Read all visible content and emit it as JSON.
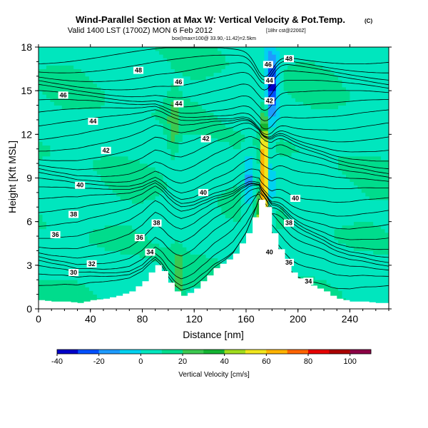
{
  "chart_data": {
    "type": "heatmap",
    "title": "Wind-Parallel Section at Max W: Vertical Velocity & Pot.Temp.",
    "title_suffix": "(C)",
    "subtitle": "Valid 1400 LST (1700Z) MON 6 Feb 2012",
    "subtitle_small": "[18hr cst@2200Z]",
    "subtitle2": "box(Imax=100@ 33.90,-11.42)=2.5km",
    "xlabel": "Distance [nm]",
    "ylabel": "Height [Kft MSL]",
    "xlim": [
      0,
      270
    ],
    "ylim": [
      0,
      18
    ],
    "x_ticks": [
      "0",
      "40",
      "80",
      "120",
      "160",
      "200",
      "240"
    ],
    "x_tick_values": [
      0,
      40,
      80,
      120,
      160,
      200,
      240
    ],
    "y_ticks": [
      "0",
      "3",
      "6",
      "9",
      "12",
      "15",
      "18"
    ],
    "y_tick_values": [
      0,
      3,
      6,
      9,
      12,
      15,
      18
    ],
    "colorbar": {
      "label": "Vertical Velocity [cm/s]",
      "tick_labels": [
        "-40",
        "-20",
        "0",
        "20",
        "40",
        "60",
        "80",
        "100"
      ],
      "tick_values": [
        -40,
        -20,
        0,
        20,
        40,
        60,
        80,
        100
      ],
      "range": [
        -40,
        110
      ],
      "colors": [
        "#0000c8",
        "#0050ff",
        "#1e9bff",
        "#00d2f0",
        "#00e6be",
        "#00dc8c",
        "#3cc850",
        "#14b432",
        "#a0dc1e",
        "#f0e61e",
        "#ffb400",
        "#ff6400",
        "#e60000",
        "#aa0000",
        "#8c0046"
      ]
    },
    "terrain_profile": {
      "x": [
        0,
        10,
        20,
        30,
        40,
        50,
        60,
        70,
        80,
        85,
        90,
        95,
        100,
        105,
        110,
        115,
        120,
        125,
        130,
        135,
        140,
        145,
        150,
        155,
        160,
        165,
        170,
        175,
        180,
        185,
        190,
        195,
        200,
        205,
        210,
        215,
        220,
        225,
        230,
        235,
        240,
        250,
        260,
        270
      ],
      "height": [
        0.6,
        0.5,
        0.5,
        0.4,
        0.6,
        0.7,
        0.9,
        1.2,
        1.9,
        2.5,
        3.0,
        2.6,
        1.8,
        1.2,
        0.9,
        1.1,
        1.4,
        1.9,
        2.3,
        2.8,
        3.1,
        3.4,
        3.8,
        4.5,
        5.2,
        6.3,
        7.5,
        7.0,
        5.2,
        4.1,
        3.2,
        2.5,
        2.1,
        1.8,
        1.6,
        1.4,
        1.2,
        0.9,
        0.7,
        0.6,
        0.5,
        0.5,
        0.4,
        0.4
      ]
    },
    "vertical_velocity_features": [
      {
        "x": 174,
        "y": 9.5,
        "value": 100
      },
      {
        "x": 172,
        "y": 5.5,
        "value": 50
      },
      {
        "x": 180,
        "y": 15.5,
        "value": -35
      },
      {
        "x": 162,
        "y": 8.5,
        "value": -15
      },
      {
        "x": 178,
        "y": 8.5,
        "value": -10
      },
      {
        "x": 104,
        "y": 12.5,
        "value": 25
      },
      {
        "x": 108,
        "y": 2.5,
        "value": 25
      },
      {
        "x": 110,
        "y": 5.2,
        "value": 5
      }
    ],
    "theta_contour_labels": [
      {
        "text": "48",
        "x": 77,
        "y": 16.4
      },
      {
        "text": "48",
        "x": 193,
        "y": 17.2
      },
      {
        "text": "46",
        "x": 177,
        "y": 16.8
      },
      {
        "text": "46",
        "x": 108,
        "y": 15.6
      },
      {
        "text": "46",
        "x": 19,
        "y": 14.7
      },
      {
        "text": "44",
        "x": 178,
        "y": 15.7
      },
      {
        "text": "44",
        "x": 108,
        "y": 14.1
      },
      {
        "text": "44",
        "x": 42,
        "y": 12.9
      },
      {
        "text": "42",
        "x": 178,
        "y": 14.3
      },
      {
        "text": "42",
        "x": 129,
        "y": 11.7
      },
      {
        "text": "42",
        "x": 52,
        "y": 10.9
      },
      {
        "text": "40",
        "x": 32,
        "y": 8.5
      },
      {
        "text": "40",
        "x": 127,
        "y": 8.0
      },
      {
        "text": "40",
        "x": 198,
        "y": 7.6
      },
      {
        "text": "38",
        "x": 27,
        "y": 6.5
      },
      {
        "text": "38",
        "x": 91,
        "y": 5.9
      },
      {
        "text": "38",
        "x": 193,
        "y": 5.9
      },
      {
        "text": "36",
        "x": 13,
        "y": 5.1
      },
      {
        "text": "36",
        "x": 78,
        "y": 4.9
      },
      {
        "text": "36",
        "x": 193,
        "y": 3.2
      },
      {
        "text": "34",
        "x": 86,
        "y": 3.9
      },
      {
        "text": "34",
        "x": 208,
        "y": 1.9
      },
      {
        "text": "32",
        "x": 41,
        "y": 3.1
      },
      {
        "text": "30",
        "x": 27,
        "y": 2.5
      },
      {
        "text": "40",
        "x": 178,
        "y": 3.9
      }
    ]
  }
}
